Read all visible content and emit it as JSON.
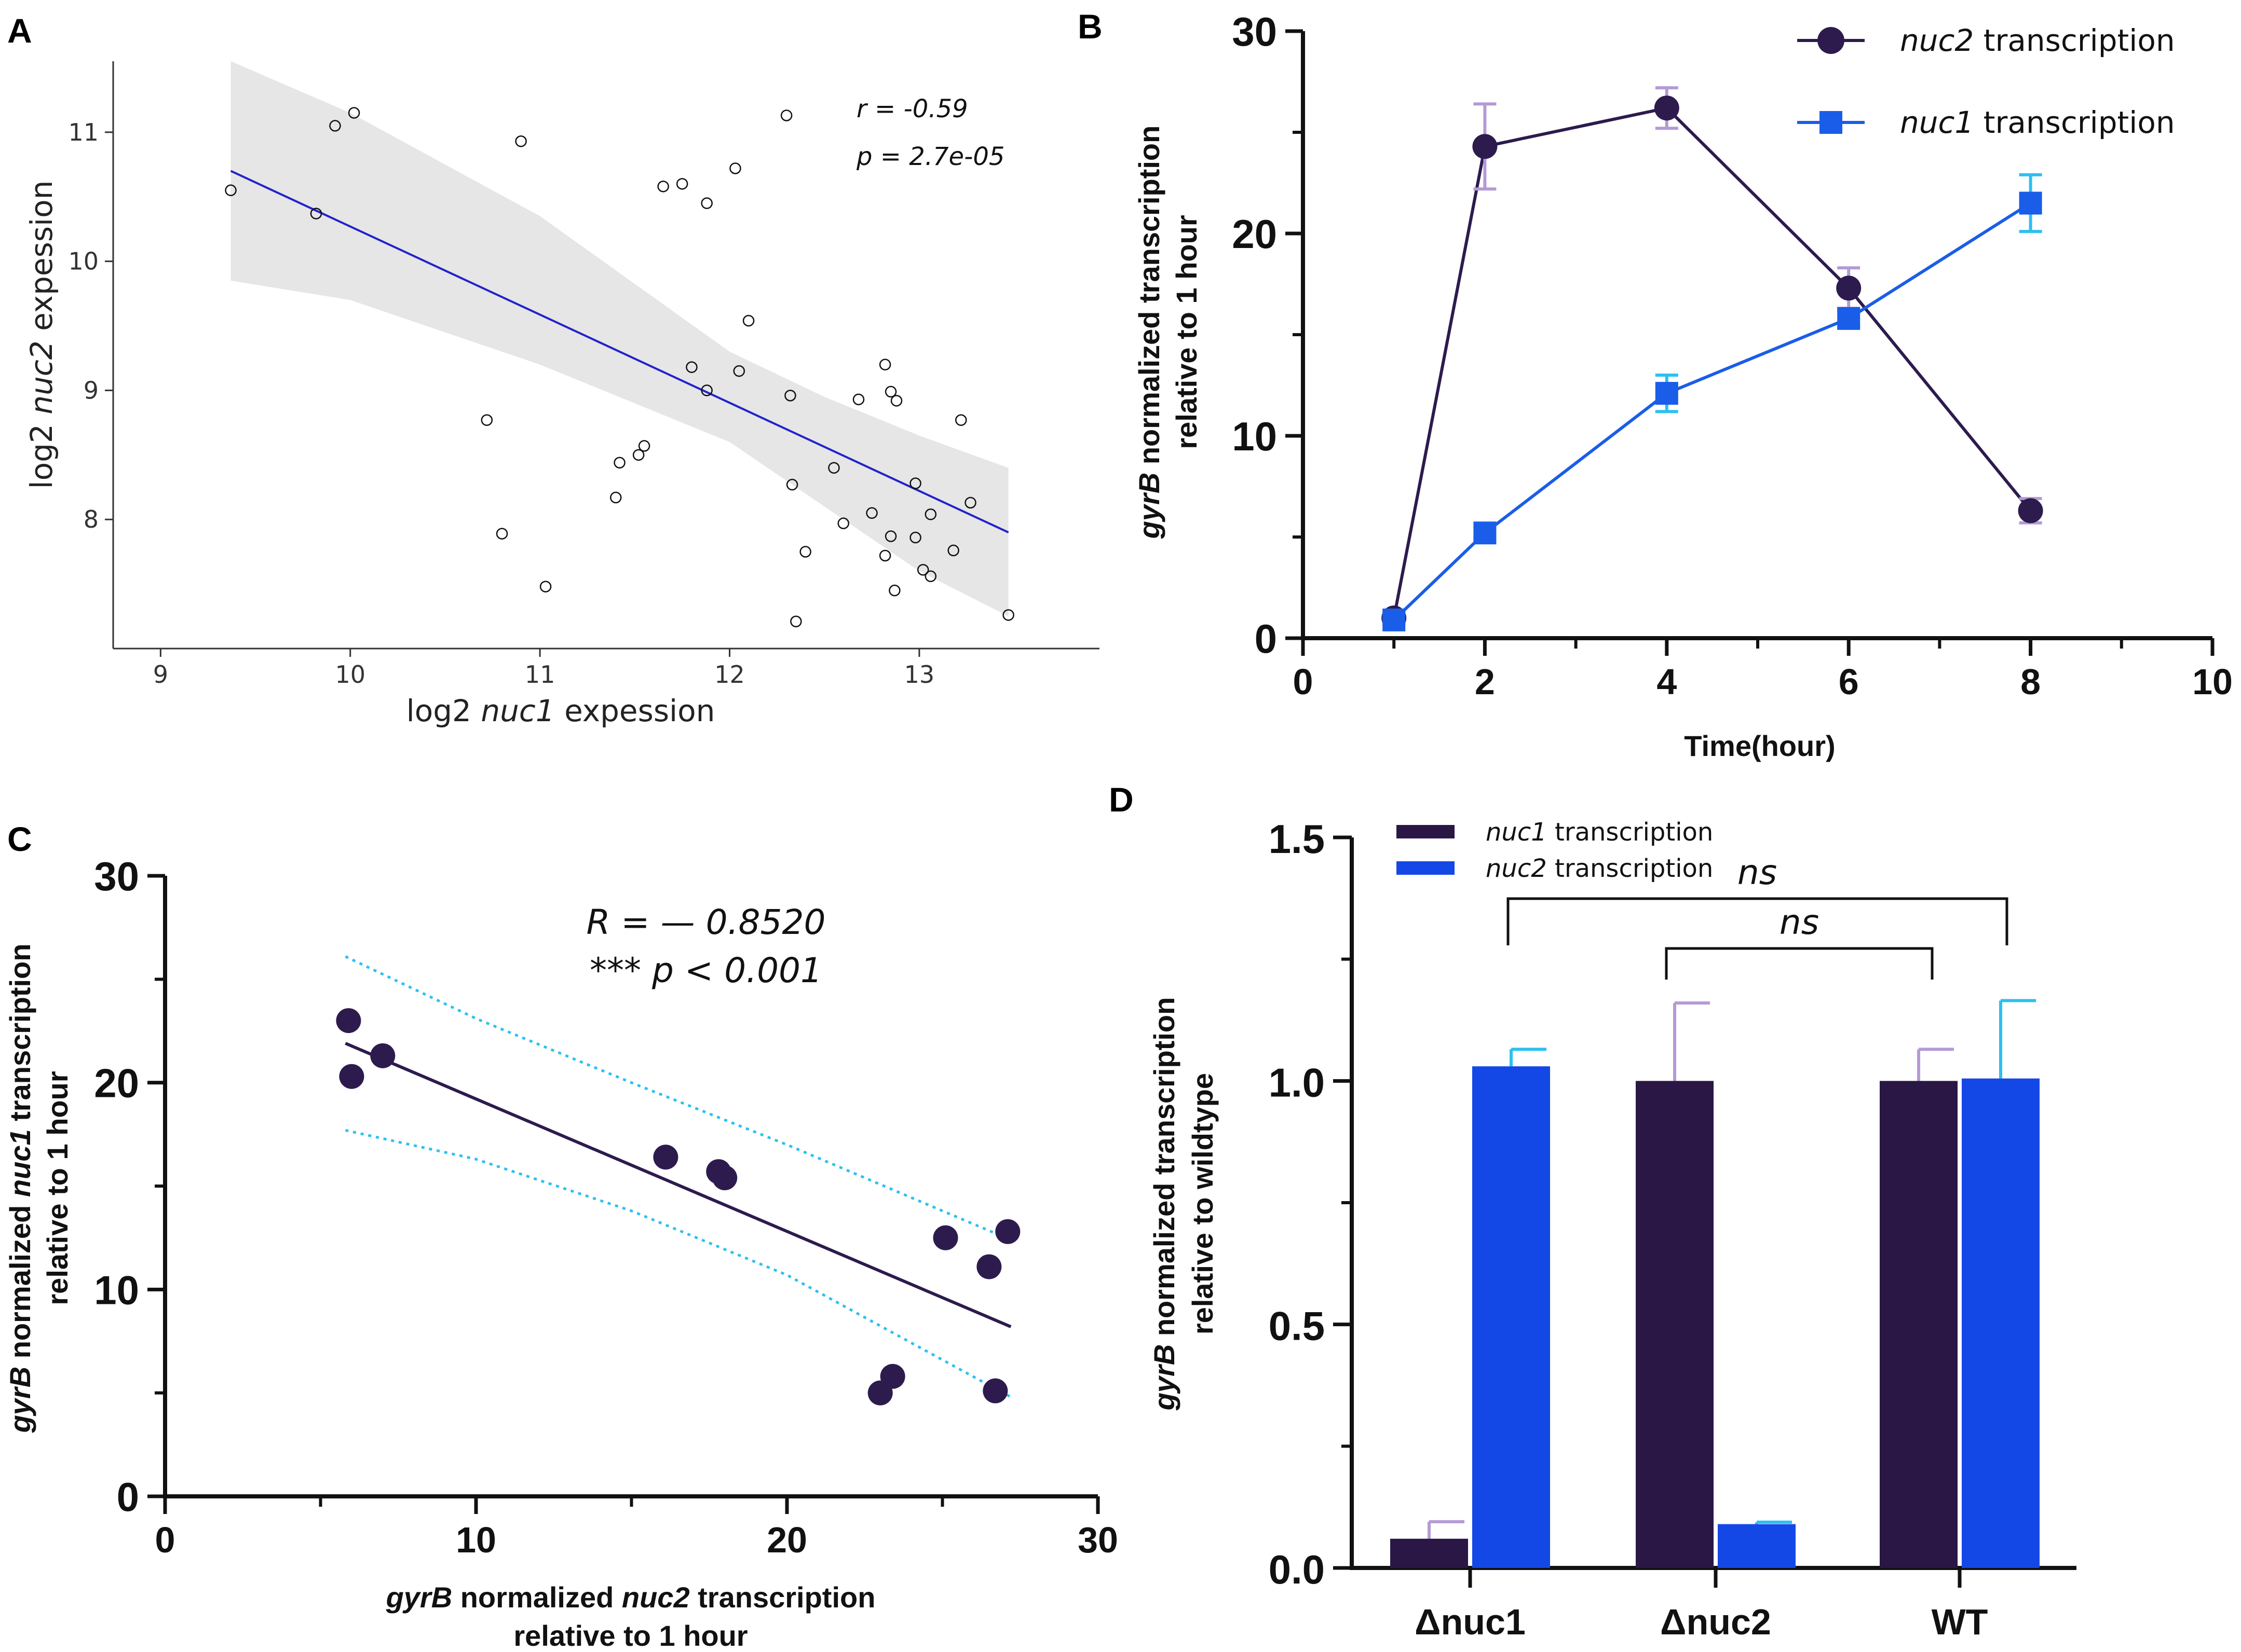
{
  "panels": {
    "A": "A",
    "B": "B",
    "C": "C",
    "D": "D"
  },
  "chart_data": [
    {
      "panel": "A",
      "type": "scatter",
      "xlabel": {
        "pre": "log2 ",
        "it": "nuc1",
        "post": " expession"
      },
      "ylabel": {
        "pre": "log2 ",
        "it": "nuc2",
        "post": " expession"
      },
      "xlim": [
        8.75,
        13.95
      ],
      "ylim": [
        7.0,
        11.55
      ],
      "xticks": [
        9,
        10,
        11,
        12,
        13
      ],
      "yticks": [
        8,
        9,
        10,
        11
      ],
      "stat_r": "r = -0.59",
      "stat_p": "p = 2.7e-05",
      "regression": {
        "x": [
          9.37,
          13.47
        ],
        "y": [
          10.7,
          7.9
        ]
      },
      "ci_band": {
        "x": [
          9.37,
          10.0,
          11.0,
          12.0,
          12.5,
          13.0,
          13.47
        ],
        "upper": [
          11.55,
          11.15,
          10.35,
          9.3,
          8.95,
          8.65,
          8.4
        ],
        "lower": [
          9.85,
          9.7,
          9.2,
          8.6,
          8.1,
          7.6,
          7.25
        ]
      },
      "points": [
        [
          9.37,
          10.55
        ],
        [
          9.82,
          10.37
        ],
        [
          9.92,
          11.05
        ],
        [
          10.02,
          11.15
        ],
        [
          10.9,
          10.93
        ],
        [
          11.65,
          10.58
        ],
        [
          11.75,
          10.6
        ],
        [
          11.88,
          10.45
        ],
        [
          12.03,
          10.72
        ],
        [
          12.3,
          11.13
        ],
        [
          12.1,
          9.54
        ],
        [
          11.8,
          9.18
        ],
        [
          11.88,
          9.0
        ],
        [
          12.05,
          9.15
        ],
        [
          12.32,
          8.96
        ],
        [
          12.55,
          8.4
        ],
        [
          12.68,
          8.93
        ],
        [
          12.82,
          9.2
        ],
        [
          12.85,
          8.99
        ],
        [
          12.88,
          8.92
        ],
        [
          13.22,
          8.77
        ],
        [
          12.98,
          8.28
        ],
        [
          13.27,
          8.13
        ],
        [
          12.75,
          8.05
        ],
        [
          13.06,
          8.04
        ],
        [
          12.33,
          8.27
        ],
        [
          12.6,
          7.97
        ],
        [
          12.85,
          7.87
        ],
        [
          12.98,
          7.86
        ],
        [
          13.18,
          7.76
        ],
        [
          12.4,
          7.75
        ],
        [
          12.82,
          7.72
        ],
        [
          13.02,
          7.61
        ],
        [
          13.06,
          7.56
        ],
        [
          12.87,
          7.45
        ],
        [
          12.35,
          7.21
        ],
        [
          13.47,
          7.26
        ],
        [
          10.72,
          8.77
        ],
        [
          11.55,
          8.57
        ],
        [
          11.52,
          8.5
        ],
        [
          11.42,
          8.44
        ],
        [
          11.4,
          8.17
        ],
        [
          10.8,
          7.89
        ],
        [
          11.03,
          7.48
        ]
      ]
    },
    {
      "panel": "B",
      "type": "line",
      "xlabel": "Time(hour)",
      "ylabel_1": {
        "it": "gyrB",
        "post": " normalized transcription"
      },
      "ylabel_2": "relative to 1 hour",
      "xlim": [
        0,
        10
      ],
      "ylim": [
        0,
        30
      ],
      "xticks": [
        0,
        2,
        4,
        6,
        8,
        10
      ],
      "yticks": [
        0,
        10,
        20,
        30
      ],
      "series": [
        {
          "name_it": "nuc2",
          "name_post": " transcription",
          "color": "#2d1b4e",
          "err_color": "#b49ad6",
          "marker": "circle",
          "x": [
            1,
            2,
            4,
            6,
            8
          ],
          "y": [
            1.0,
            24.3,
            26.2,
            17.3,
            6.3
          ],
          "err": [
            0.3,
            2.1,
            1.0,
            1.0,
            0.6
          ]
        },
        {
          "name_it": "nuc1",
          "name_post": " transcription",
          "color": "#1a5de8",
          "err_color": "#2cc0f0",
          "marker": "square",
          "x": [
            1,
            2,
            4,
            6,
            8
          ],
          "y": [
            0.9,
            5.2,
            12.1,
            15.8,
            21.5
          ],
          "err": [
            0.2,
            0.3,
            0.9,
            0.4,
            1.4
          ]
        }
      ]
    },
    {
      "panel": "C",
      "type": "scatter",
      "xlabel_1": {
        "it": "gyrB",
        "mid": " normalized ",
        "it2": "nuc2",
        "post": " transcription"
      },
      "xlabel_2": "relative to 1 hour",
      "ylabel_1": {
        "it": "gyrB",
        "mid": " normalized ",
        "it2": "nuc1",
        "post": " transcription"
      },
      "ylabel_2": "relative to 1 hour",
      "xlim": [
        0,
        30
      ],
      "ylim": [
        0,
        30
      ],
      "xticks": [
        0,
        10,
        20,
        30
      ],
      "yticks": [
        0,
        10,
        20,
        30
      ],
      "stat_r": "R = — 0.8520",
      "stat_p_stars": "*** ",
      "stat_p": "p < 0.001",
      "color": "#2d1b4e",
      "ci_color": "#2cc0f0",
      "regression": {
        "x": [
          5.8,
          27.2
        ],
        "y": [
          21.9,
          8.2
        ]
      },
      "ci_upper": {
        "x": [
          5.8,
          10,
          15,
          20,
          25,
          27.2
        ],
        "y": [
          26.1,
          23.1,
          20.0,
          17.0,
          13.8,
          12.4
        ]
      },
      "ci_lower": {
        "x": [
          5.8,
          10,
          15,
          20,
          25,
          27.2
        ],
        "y": [
          17.7,
          16.3,
          13.8,
          10.7,
          6.6,
          4.8
        ]
      },
      "points": [
        [
          5.9,
          23.0
        ],
        [
          6.0,
          20.3
        ],
        [
          7.0,
          21.3
        ],
        [
          16.1,
          16.4
        ],
        [
          17.8,
          15.7
        ],
        [
          18.0,
          15.4
        ],
        [
          25.1,
          12.5
        ],
        [
          27.1,
          12.8
        ],
        [
          26.5,
          11.1
        ],
        [
          23.0,
          5.0
        ],
        [
          23.4,
          5.8
        ],
        [
          26.7,
          5.1
        ]
      ]
    },
    {
      "panel": "D",
      "type": "bar",
      "ylabel_1": {
        "it": "gyrB",
        "post": " normalized transcription"
      },
      "ylabel_2": "relative to wildtype",
      "ylim": [
        0,
        1.5
      ],
      "yticks": [
        "0.0",
        "0.5",
        "1.0",
        "1.5"
      ],
      "categories": [
        "Δnuc1",
        "Δnuc2",
        "WT"
      ],
      "series": [
        {
          "name_it": "nuc1",
          "name_post": " transcription",
          "color": "#2a1745",
          "err_color": "#b49ad6",
          "values": [
            0.06,
            1.0,
            1.0
          ],
          "err": [
            0.035,
            0.16,
            0.065
          ]
        },
        {
          "name_it": "nuc2",
          "name_post": " transcription",
          "color": "#1448e6",
          "err_color": "#2cc0f0",
          "values": [
            1.03,
            0.09,
            1.005
          ],
          "err": [
            0.035,
            0.004,
            0.16
          ]
        }
      ],
      "brackets": [
        {
          "label": "ns",
          "from": 0,
          "to": 2
        },
        {
          "label": "ns",
          "from": 1,
          "to": 2
        }
      ]
    }
  ]
}
